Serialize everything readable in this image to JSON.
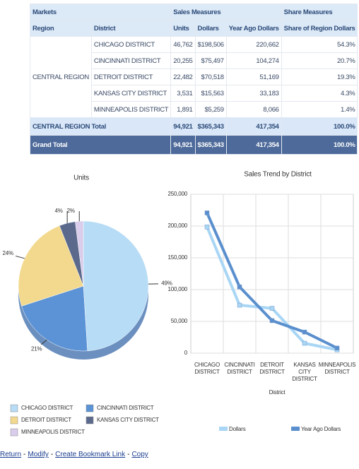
{
  "table": {
    "header_groups": [
      "Markets",
      "Sales Measures",
      "Share Measures"
    ],
    "columns": [
      "Region",
      "District",
      "Units",
      "Dollars",
      "Year Ago Dollars",
      "Share of Region Dollars"
    ],
    "region": "CENTRAL REGION",
    "rows": [
      [
        "CHICAGO DISTRICT",
        "46,762",
        "$198,506",
        "220,662",
        "54.3%"
      ],
      [
        "CINCINNATI DISTRICT",
        "20,255",
        "$75,497",
        "104,274",
        "20.7%"
      ],
      [
        "DETROIT DISTRICT",
        "22,482",
        "$70,518",
        "51,169",
        "19.3%"
      ],
      [
        "KANSAS CITY DISTRICT",
        "3,531",
        "$15,563",
        "33,183",
        "4.3%"
      ],
      [
        "MINNEAPOLIS DISTRICT",
        "1,891",
        "$5,259",
        "8,066",
        "1.4%"
      ]
    ],
    "total": [
      "CENTRAL REGION Total",
      "94,921",
      "$365,343",
      "417,354",
      "100.0%"
    ],
    "grand_total": [
      "Grand Total",
      "94,921",
      "$365,343",
      "417,354",
      "100.0%"
    ]
  },
  "chart_data": [
    {
      "type": "pie",
      "title": "Units",
      "categories": [
        "CHICAGO DISTRICT",
        "CINCINNATI DISTRICT",
        "DETROIT DISTRICT",
        "KANSAS CITY DISTRICT",
        "MINNEAPOLIS DISTRICT"
      ],
      "values": [
        49,
        21,
        24,
        4,
        2
      ],
      "value_labels": [
        "49%",
        "21%",
        "24%",
        "4%",
        "2%"
      ],
      "colors": [
        "#b7dcf6",
        "#5b93d6",
        "#f3d98e",
        "#5b6a8c",
        "#d9cdeb"
      ]
    },
    {
      "type": "line",
      "title": "Sales Trend by District",
      "xlabel": "District",
      "categories": [
        "CHICAGO DISTRICT",
        "CINCINNATI DISTRICT",
        "DETROIT DISTRICT",
        "KANSAS CITY DISTRICT",
        "MINNEAPOLIS DISTRICT"
      ],
      "series": [
        {
          "name": "Dollars",
          "color": "#a9d6f5",
          "values": [
            198506,
            75497,
            70518,
            15563,
            5259
          ]
        },
        {
          "name": "Year Ago Dollars",
          "color": "#5a8fce",
          "values": [
            220662,
            104274,
            51169,
            33183,
            8066
          ]
        }
      ],
      "ylim": [
        0,
        250000
      ],
      "yticks": [
        0,
        {
          "value": 50000,
          "label": "50,000"
        },
        {
          "value": 100000,
          "label": "100,000"
        },
        {
          "value": 150000,
          "label": "150,000"
        },
        {
          "value": 200000,
          "label": "200,000"
        },
        {
          "value": 250000,
          "label": "250,000"
        }
      ],
      "grid": true
    }
  ],
  "links": [
    "Return",
    "Modify",
    "Create Bookmark Link",
    "Copy"
  ],
  "separator": "-"
}
